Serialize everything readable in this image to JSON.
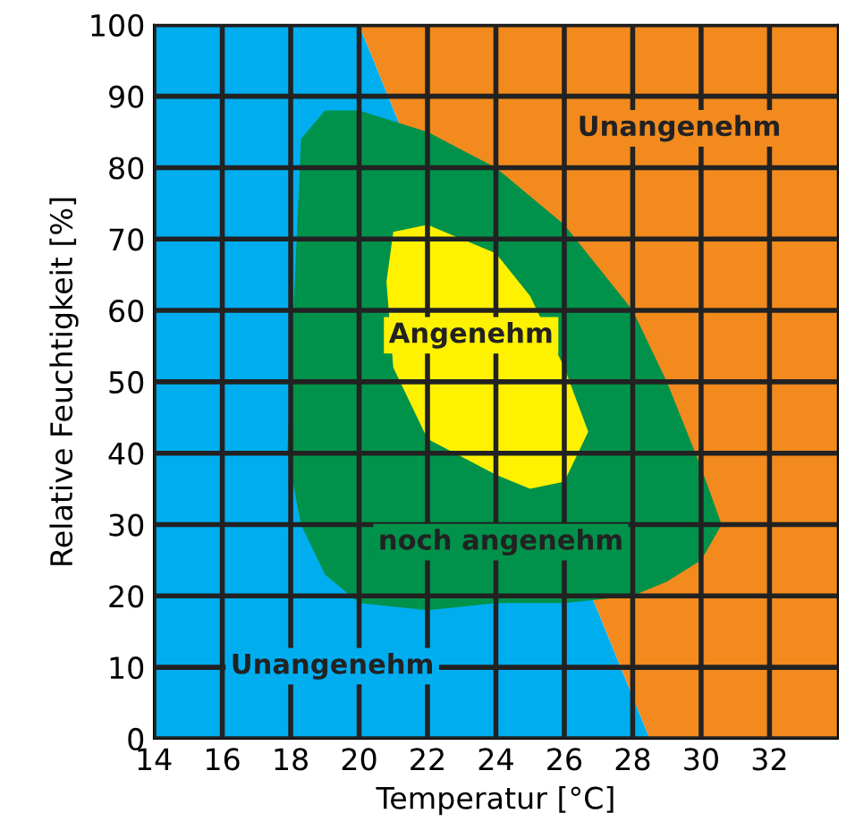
{
  "chart_data": {
    "type": "area",
    "xlabel": "Temperatur [°C]",
    "ylabel": "Relative Feuchtigkeit [%]",
    "xlim": [
      14,
      34
    ],
    "ylim": [
      0,
      100
    ],
    "xticks": [
      14,
      16,
      18,
      20,
      22,
      24,
      26,
      28,
      30,
      32
    ],
    "yticks": [
      0,
      10,
      20,
      30,
      40,
      50,
      60,
      70,
      80,
      90,
      100
    ],
    "grid": true,
    "legend": false,
    "series": [
      {
        "name": "Unangenehm",
        "color": "#00aeef",
        "x": [
          14,
          20,
          28.5,
          14
        ],
        "values": [
          100,
          100,
          0,
          0
        ]
      },
      {
        "name": "Unangenehm",
        "color": "#f28a1e",
        "x": [
          20,
          34,
          34,
          28.5
        ],
        "values": [
          100,
          100,
          0,
          0
        ]
      },
      {
        "name": "noch angenehm",
        "color": "#00924a",
        "x": [
          17.9,
          18.3,
          19,
          20,
          22,
          24,
          26,
          28,
          29,
          30,
          30.6,
          30,
          29,
          28,
          26,
          24,
          22,
          20,
          19,
          18.3
        ],
        "values": [
          40,
          84,
          88,
          88,
          85,
          80,
          72,
          60,
          50,
          38,
          30,
          25,
          22,
          20,
          19,
          19,
          18,
          19,
          23,
          30
        ]
      },
      {
        "name": "Angenehm",
        "color": "#fff200",
        "x": [
          20.8,
          21,
          22,
          24,
          25,
          26,
          26.7,
          26,
          25,
          24,
          22,
          21
        ],
        "values": [
          64,
          71,
          72,
          68,
          62,
          52,
          43,
          36,
          35,
          37,
          42,
          52
        ]
      }
    ]
  }
}
